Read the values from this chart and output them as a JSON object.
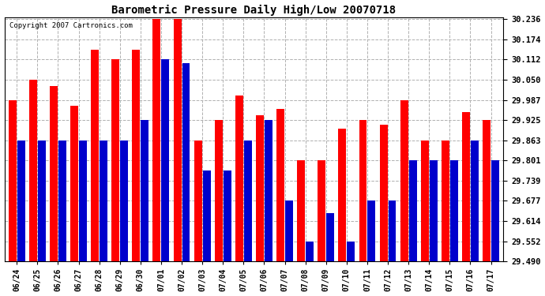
{
  "title": "Barometric Pressure Daily High/Low 20070718",
  "copyright": "Copyright 2007 Cartronics.com",
  "dates": [
    "06/24",
    "06/25",
    "06/26",
    "06/27",
    "06/28",
    "06/29",
    "06/30",
    "07/01",
    "07/02",
    "07/03",
    "07/04",
    "07/05",
    "07/06",
    "07/07",
    "07/08",
    "07/09",
    "07/10",
    "07/11",
    "07/12",
    "07/13",
    "07/14",
    "07/15",
    "07/16",
    "07/17"
  ],
  "highs": [
    29.987,
    30.05,
    30.03,
    29.97,
    30.143,
    30.112,
    30.143,
    30.236,
    30.236,
    29.863,
    29.925,
    30.0,
    29.94,
    29.96,
    29.801,
    29.801,
    29.898,
    29.925,
    29.912,
    29.987,
    29.863,
    29.863,
    29.95,
    29.925
  ],
  "lows": [
    29.863,
    29.863,
    29.863,
    29.863,
    29.863,
    29.863,
    29.925,
    30.112,
    30.1,
    29.77,
    29.77,
    29.863,
    29.925,
    29.677,
    29.552,
    29.639,
    29.552,
    29.677,
    29.677,
    29.801,
    29.801,
    29.801,
    29.863,
    29.801
  ],
  "high_color": "#ff0000",
  "low_color": "#0000cc",
  "background_color": "#ffffff",
  "grid_color": "#b0b0b0",
  "ymin": 29.49,
  "ymax": 30.236,
  "yticks": [
    29.49,
    29.552,
    29.614,
    29.677,
    29.739,
    29.801,
    29.863,
    29.925,
    29.987,
    30.05,
    30.112,
    30.174,
    30.236
  ]
}
